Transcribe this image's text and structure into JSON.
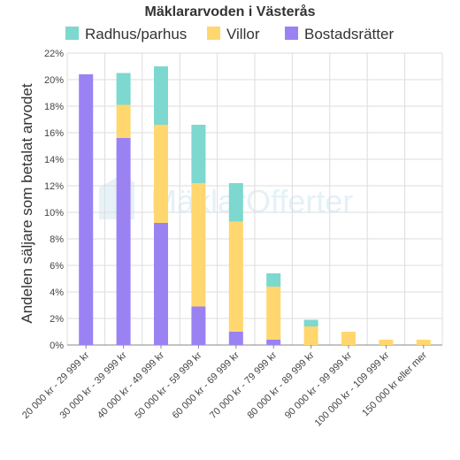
{
  "chart_data": {
    "type": "bar",
    "stacked": true,
    "title": "Mäklararvoden i Västerås",
    "ylabel": "Andelen säljare som betalat arvodet",
    "xlabel": "",
    "ylim": [
      0,
      22
    ],
    "ytick_step": 2,
    "ytick_suffix": "%",
    "legend_position": "top",
    "grid": true,
    "watermark": "MäklarOfferter",
    "categories": [
      "20 000 kr - 29 999 kr",
      "30 000 kr - 39 999 kr",
      "40 000 kr - 49 999 kr",
      "50 000 kr - 59 999 kr",
      "60 000 kr - 69 999 kr",
      "70 000 kr - 79 999 kr",
      "80 000 kr - 89 999 kr",
      "90 000 kr - 99 999 kr",
      "100 000 kr - 109 999 kr",
      "150 000 kr eller mer"
    ],
    "series": [
      {
        "name": "Radhus/parhus",
        "color": "#7dd8cf",
        "values": [
          0,
          2.4,
          4.4,
          4.4,
          2.9,
          1.0,
          0.5,
          0,
          0,
          0
        ]
      },
      {
        "name": "Villor",
        "color": "#ffd76e",
        "values": [
          0,
          2.5,
          7.4,
          9.3,
          8.3,
          4.0,
          1.4,
          1.0,
          0.4,
          0.4
        ]
      },
      {
        "name": "Bostadsrätter",
        "color": "#9b82f2",
        "values": [
          20.4,
          15.6,
          9.2,
          2.9,
          1.0,
          0.4,
          0,
          0,
          0,
          0
        ]
      }
    ]
  }
}
